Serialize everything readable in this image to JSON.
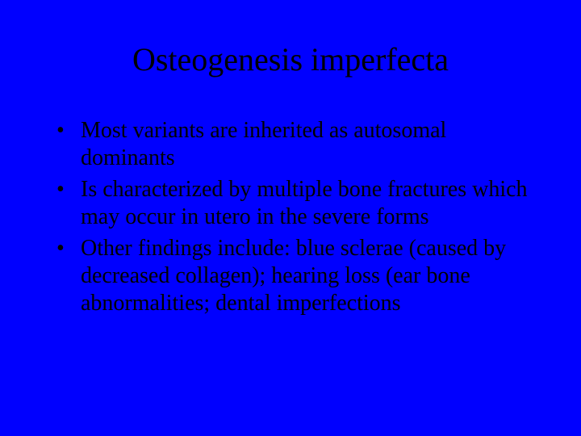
{
  "slide": {
    "background_color": "#0000ff",
    "text_color": "#000000",
    "font_family": "Times New Roman",
    "title": {
      "text": "Osteogenesis imperfecta",
      "fontsize": 40,
      "align": "center"
    },
    "bullets": {
      "fontsize": 28,
      "marker": "•",
      "items": [
        "Most variants are inherited as autosomal dominants",
        "Is characterized by multiple bone fractures which may occur in utero in the severe forms",
        "Other findings include: blue sclerae (caused by decreased collagen); hearing loss (ear bone abnormalities; dental imperfections"
      ]
    }
  }
}
